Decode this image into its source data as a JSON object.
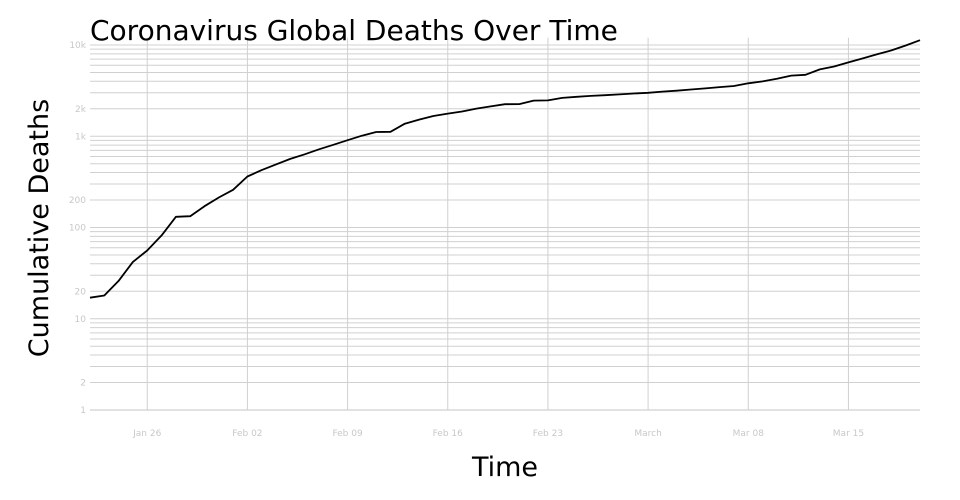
{
  "chart_data": {
    "type": "line",
    "title": "Coronavirus Global Deaths Over Time",
    "xlabel": "Time",
    "ylabel": "Cumulative Deaths",
    "yscale": "log",
    "ylim": [
      1,
      12000
    ],
    "xlim": [
      "2020-01-22",
      "2020-03-20"
    ],
    "grid": true,
    "line_color": "#000000",
    "grid_color": "#d0d0d0",
    "x_ticks": [
      {
        "date": "2020-01-26",
        "label": "Jan 26"
      },
      {
        "date": "2020-02-02",
        "label": "Feb 02"
      },
      {
        "date": "2020-02-09",
        "label": "Feb 09"
      },
      {
        "date": "2020-02-16",
        "label": "Feb 16"
      },
      {
        "date": "2020-02-23",
        "label": "Feb 23"
      },
      {
        "date": "2020-03-01",
        "label": "March"
      },
      {
        "date": "2020-03-08",
        "label": "Mar 08"
      },
      {
        "date": "2020-03-15",
        "label": "Mar 15"
      }
    ],
    "y_ticks": [
      {
        "value": 1,
        "label": "1"
      },
      {
        "value": 2,
        "label": "2"
      },
      {
        "value": 10,
        "label": "10"
      },
      {
        "value": 20,
        "label": "20"
      },
      {
        "value": 100,
        "label": "100"
      },
      {
        "value": 200,
        "label": "200"
      },
      {
        "value": 1000,
        "label": "1k"
      },
      {
        "value": 2000,
        "label": "2k"
      },
      {
        "value": 10000,
        "label": "10k"
      }
    ],
    "x": [
      "2020-01-22",
      "2020-01-23",
      "2020-01-24",
      "2020-01-25",
      "2020-01-26",
      "2020-01-27",
      "2020-01-28",
      "2020-01-29",
      "2020-01-30",
      "2020-01-31",
      "2020-02-01",
      "2020-02-02",
      "2020-02-03",
      "2020-02-04",
      "2020-02-05",
      "2020-02-06",
      "2020-02-07",
      "2020-02-08",
      "2020-02-09",
      "2020-02-10",
      "2020-02-11",
      "2020-02-12",
      "2020-02-13",
      "2020-02-14",
      "2020-02-15",
      "2020-02-16",
      "2020-02-17",
      "2020-02-18",
      "2020-02-19",
      "2020-02-20",
      "2020-02-21",
      "2020-02-22",
      "2020-02-23",
      "2020-02-24",
      "2020-02-25",
      "2020-02-26",
      "2020-02-27",
      "2020-02-28",
      "2020-02-29",
      "2020-03-01",
      "2020-03-02",
      "2020-03-03",
      "2020-03-04",
      "2020-03-05",
      "2020-03-06",
      "2020-03-07",
      "2020-03-08",
      "2020-03-09",
      "2020-03-10",
      "2020-03-11",
      "2020-03-12",
      "2020-03-13",
      "2020-03-14",
      "2020-03-15",
      "2020-03-16",
      "2020-03-17",
      "2020-03-18",
      "2020-03-19",
      "2020-03-20"
    ],
    "values": [
      17,
      18,
      26,
      42,
      56,
      82,
      131,
      133,
      171,
      213,
      259,
      362,
      426,
      492,
      564,
      634,
      719,
      806,
      906,
      1013,
      1113,
      1118,
      1371,
      1523,
      1666,
      1770,
      1868,
      2007,
      2122,
      2247,
      2251,
      2458,
      2469,
      2629,
      2708,
      2770,
      2814,
      2872,
      2941,
      2996,
      3085,
      3160,
      3254,
      3348,
      3460,
      3558,
      3802,
      3988,
      4262,
      4615,
      4720,
      5404,
      5819,
      6440,
      7126,
      7905,
      8733,
      9867,
      11299
    ]
  }
}
